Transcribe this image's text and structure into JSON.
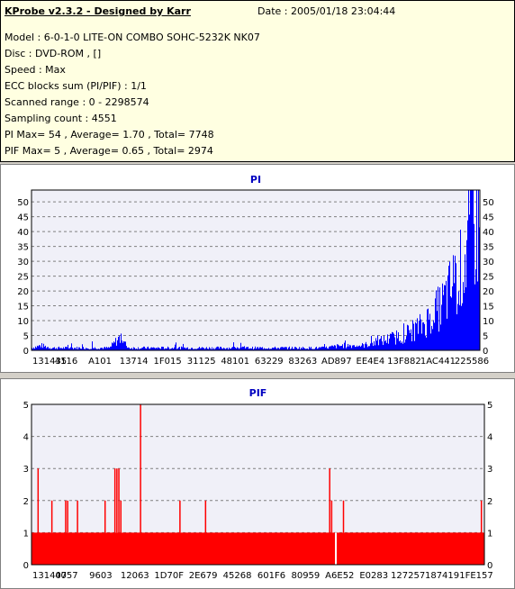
{
  "header": {
    "title": "KProbe v2.3.2 - Designed by Karr",
    "date": "Date : 2005/01/18 23:04:44",
    "lines": [
      "Model : 6-0-1-0 LITE-ON COMBO SOHC-5232K NK07",
      "Disc : DVD-ROM ,  []",
      "Speed : Max",
      "ECC blocks sum (PI/PIF) : 1/1",
      "Scanned range : 0 - 2298574",
      "Sampling count : 4551",
      "PI Max= 54 , Average= 1.70 , Total= 7748",
      "PIF Max= 5 , Average= 0.65 , Total= 2974"
    ]
  },
  "colors": {
    "pi": "#0000ff",
    "pif": "#ff0000",
    "title": "#0000c0",
    "plot_bg": "#f0f0f8",
    "grid": "#808080"
  },
  "chart_data": [
    {
      "type": "bar",
      "title": "PI",
      "ylim": [
        0,
        54
      ],
      "yticks": [
        0,
        5,
        10,
        15,
        20,
        25,
        30,
        35,
        40,
        45,
        50
      ],
      "xlim": [
        0,
        2298574
      ],
      "xtick_labels": [
        "131435",
        "4116",
        "A101",
        "13714",
        "1F015",
        "31125",
        "48101",
        "63229",
        "83263",
        "AD897",
        "EE4E4",
        "13F882",
        "1AC441",
        "225586"
      ],
      "grid": true,
      "sampling_count": 4551,
      "series": [
        {
          "values_description_points": [
            [
              0,
              1
            ],
            [
              50000,
              2
            ],
            [
              100000,
              1
            ],
            [
              200000,
              1
            ],
            [
              300000,
              1
            ],
            [
              400000,
              1
            ],
            [
              450000,
              5
            ],
            [
              500000,
              1
            ],
            [
              600000,
              1
            ],
            [
              700000,
              1
            ],
            [
              800000,
              1
            ],
            [
              900000,
              1
            ],
            [
              1000000,
              1
            ],
            [
              1100000,
              1
            ],
            [
              1200000,
              1
            ],
            [
              1300000,
              1
            ],
            [
              1400000,
              1
            ],
            [
              1500000,
              1
            ],
            [
              1600000,
              2
            ],
            [
              1700000,
              2
            ],
            [
              1750000,
              3
            ],
            [
              1800000,
              4
            ],
            [
              1850000,
              5
            ],
            [
              1900000,
              6
            ],
            [
              1950000,
              8
            ],
            [
              2000000,
              10
            ],
            [
              2050000,
              14
            ],
            [
              2100000,
              18
            ],
            [
              2150000,
              25
            ],
            [
              2200000,
              32
            ],
            [
              2230000,
              40
            ],
            [
              2260000,
              54
            ],
            [
              2298574,
              50
            ]
          ]
        }
      ]
    },
    {
      "type": "bar",
      "title": "PIF",
      "ylim": [
        0,
        5
      ],
      "yticks": [
        0,
        1,
        2,
        3,
        4,
        5
      ],
      "xlim": [
        0,
        2298574
      ],
      "xtick_labels": [
        "131407",
        "4057",
        "9603",
        "12063",
        "1D70F",
        "2E679",
        "45268",
        "601F6",
        "80959",
        "A6E52",
        "E0283",
        "127257",
        "187419",
        "1FE157"
      ],
      "grid": true,
      "series": [
        {
          "baseline": 1,
          "spikes": [
            [
              30000,
              3
            ],
            [
              100000,
              2
            ],
            [
              170000,
              2
            ],
            [
              180000,
              2
            ],
            [
              230000,
              2
            ],
            [
              370000,
              2
            ],
            [
              420000,
              3
            ],
            [
              430000,
              3
            ],
            [
              440000,
              3
            ],
            [
              450000,
              2
            ],
            [
              550000,
              5
            ],
            [
              750000,
              2
            ],
            [
              880000,
              2
            ],
            [
              1510000,
              3
            ],
            [
              1520000,
              2
            ],
            [
              1580000,
              2
            ],
            [
              2280000,
              2
            ]
          ],
          "gaps": [
            1540000
          ]
        }
      ]
    }
  ]
}
